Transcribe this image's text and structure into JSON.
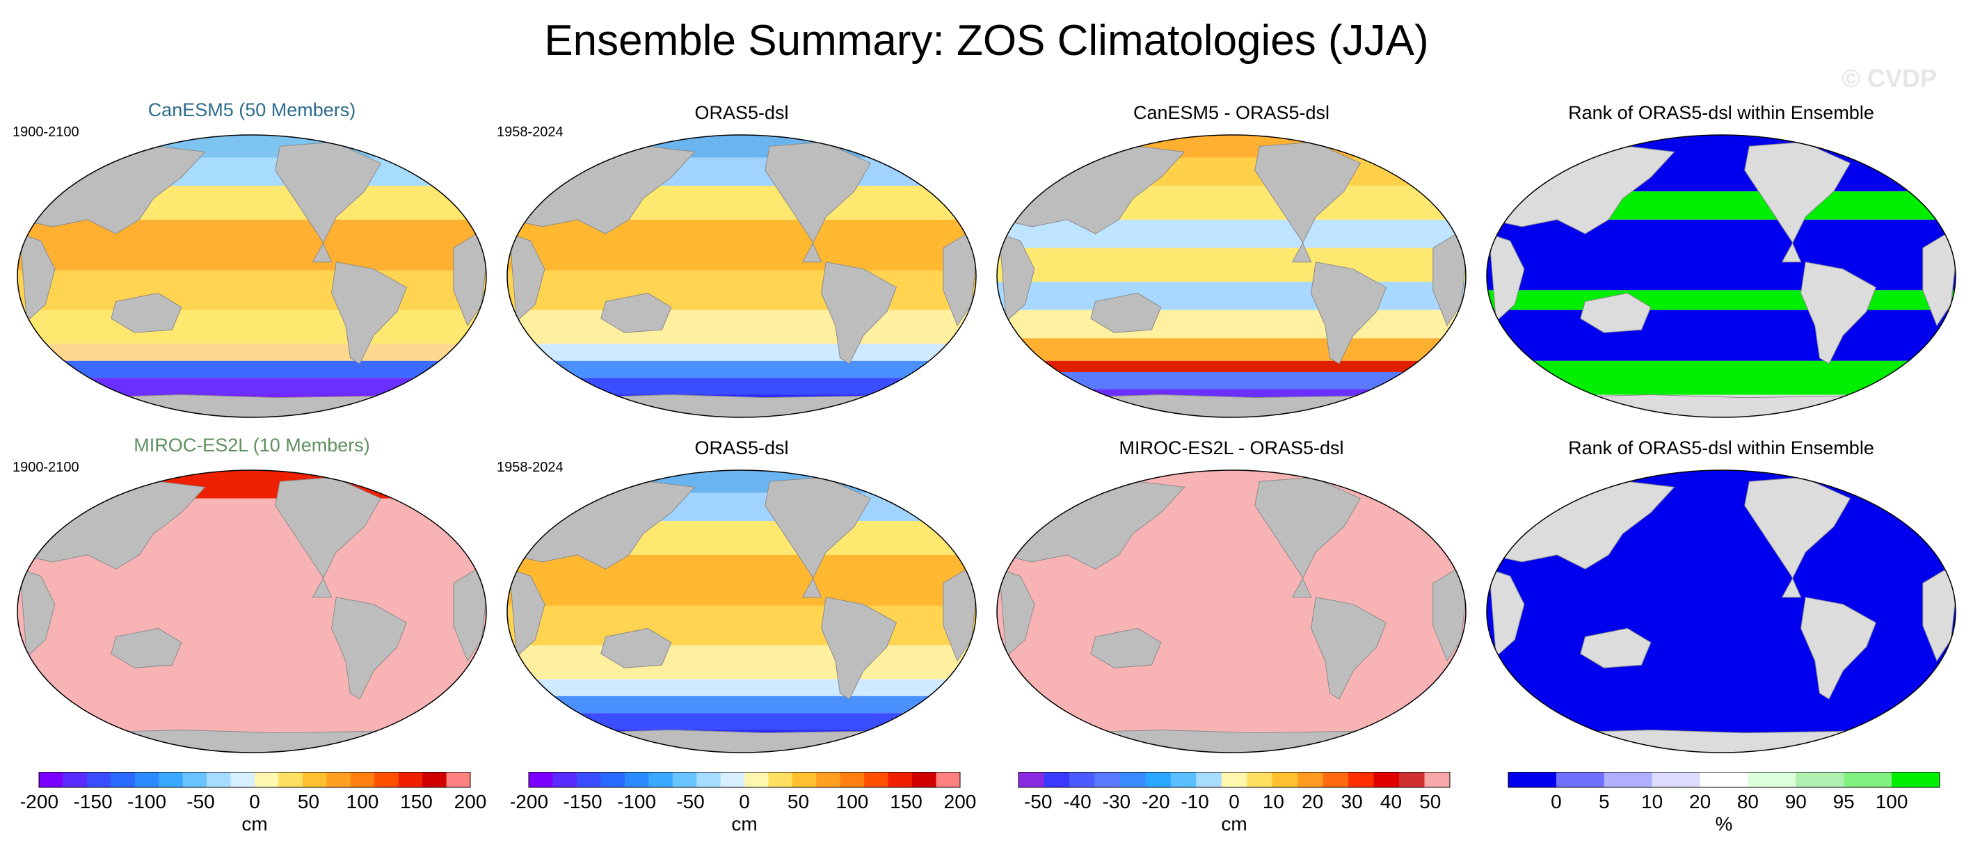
{
  "title": "Ensemble Summary: ZOS Climatologies (JJA)",
  "watermark": "© CVDP",
  "colors": {
    "land": "#bdbdbd",
    "land_light": "#dcdcdc",
    "pink_fill": "#f8b4b4",
    "rank_low": "#0000ee",
    "rank_high": "#00ee00"
  },
  "panels": [
    {
      "id": "canesm5",
      "title": "CanESM5 (50 Members)",
      "title_color": "#2a6a8a",
      "period": "1900-2100",
      "field": "clim_a"
    },
    {
      "id": "oras5-top",
      "title": "ORAS5-dsl",
      "title_color": "#000000",
      "period": "1958-2024",
      "field": "clim_b"
    },
    {
      "id": "diff-canesm5",
      "title": "CanESM5 - ORAS5-dsl",
      "title_color": "#000000",
      "period": "",
      "field": "diff"
    },
    {
      "id": "rank-canesm5",
      "title": "Rank of ORAS5-dsl within Ensemble",
      "title_color": "#000000",
      "period": "",
      "field": "rank"
    },
    {
      "id": "miroc",
      "title": "MIROC-ES2L (10 Members)",
      "title_color": "#5e8f5e",
      "period": "1900-2100",
      "field": "pink"
    },
    {
      "id": "oras5-bottom",
      "title": "ORAS5-dsl",
      "title_color": "#000000",
      "period": "1958-2024",
      "field": "clim_b"
    },
    {
      "id": "diff-miroc",
      "title": "MIROC-ES2L - ORAS5-dsl",
      "title_color": "#000000",
      "period": "",
      "field": "pink"
    },
    {
      "id": "rank-miroc",
      "title": "Rank of ORAS5-dsl within Ensemble",
      "title_color": "#000000",
      "period": "",
      "field": "rank_blue"
    }
  ],
  "colorbars": [
    {
      "id": "cbar-canesm5",
      "unit": "cm",
      "ticks": [
        "-200",
        "-150",
        "-100",
        "-50",
        "0",
        "50",
        "100",
        "150",
        "200"
      ],
      "range": [
        -200,
        200
      ],
      "colors": [
        "#7a00ff",
        "#5a2bff",
        "#3a4dff",
        "#2a6aff",
        "#2a8aff",
        "#3aa8ff",
        "#6ac4ff",
        "#a6dcff",
        "#d6f0ff",
        "#fff7b0",
        "#ffe060",
        "#ffc030",
        "#ffa020",
        "#ff8010",
        "#ff5000",
        "#f02000",
        "#d00000",
        "#ff8080"
      ]
    },
    {
      "id": "cbar-oras5",
      "unit": "cm",
      "ticks": [
        "-200",
        "-150",
        "-100",
        "-50",
        "0",
        "50",
        "100",
        "150",
        "200"
      ],
      "range": [
        -200,
        200
      ],
      "colors": [
        "#7a00ff",
        "#5a2bff",
        "#3a4dff",
        "#2a6aff",
        "#2a8aff",
        "#3aa8ff",
        "#6ac4ff",
        "#a6dcff",
        "#d6f0ff",
        "#fff7b0",
        "#ffe060",
        "#ffc030",
        "#ffa020",
        "#ff8010",
        "#ff5000",
        "#f02000",
        "#d00000",
        "#ff8080"
      ]
    },
    {
      "id": "cbar-diff",
      "unit": "cm",
      "ticks": [
        "-50",
        "-40",
        "-30",
        "-20",
        "-10",
        "0",
        "10",
        "20",
        "30",
        "40",
        "50"
      ],
      "range": [
        -55,
        55
      ],
      "colors": [
        "#8a2be2",
        "#3a3aff",
        "#4a5cff",
        "#5a7aff",
        "#3a8aff",
        "#2aa6ff",
        "#5ac0ff",
        "#a8dcff",
        "#fff7b0",
        "#ffe060",
        "#ffc030",
        "#ff9a20",
        "#ff6a10",
        "#ff3000",
        "#e00000",
        "#d03030",
        "#f8a8a8"
      ]
    },
    {
      "id": "cbar-rank",
      "unit": "%",
      "ticks": [
        "0",
        "5",
        "10",
        "20",
        "80",
        "90",
        "95",
        "100"
      ],
      "range": [
        0,
        100
      ],
      "colors": [
        "#0000ee",
        "#7070ff",
        "#b0b0ff",
        "#dcdcff",
        "#ffffff",
        "#dcffdc",
        "#b0f0b0",
        "#80f080",
        "#00ee00"
      ]
    }
  ]
}
